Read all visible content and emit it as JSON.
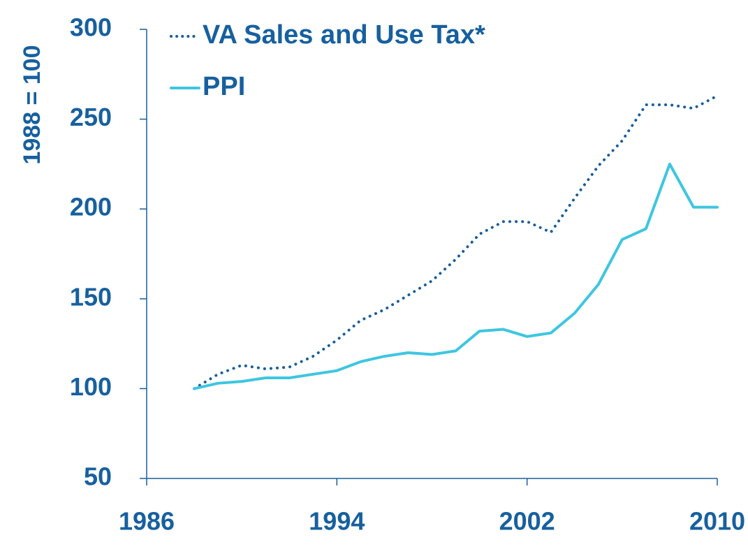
{
  "chart_data": {
    "type": "line",
    "y_label": "1988 = 100",
    "x": [
      1988,
      1989,
      1990,
      1991,
      1992,
      1993,
      1994,
      1995,
      1996,
      1997,
      1998,
      1999,
      2000,
      2001,
      2002,
      2003,
      2004,
      2005,
      2006,
      2007,
      2008,
      2009,
      2010
    ],
    "series": [
      {
        "name": "VA Sales and Use Tax*",
        "color": "#1a5e9a",
        "dashed": true,
        "values": [
          100,
          108,
          113,
          111,
          112,
          118,
          127,
          138,
          144,
          152,
          160,
          172,
          186,
          193,
          193,
          187,
          206,
          224,
          238,
          258,
          258,
          256,
          263
        ]
      },
      {
        "name": "PPI",
        "color": "#3ec6e0",
        "dashed": false,
        "values": [
          100,
          103,
          104,
          106,
          106,
          108,
          110,
          115,
          118,
          120,
          119,
          121,
          132,
          133,
          129,
          131,
          142,
          158,
          183,
          189,
          225,
          201,
          201
        ]
      }
    ],
    "xlim": [
      1986,
      2010
    ],
    "xticks": [
      1986,
      1994,
      2002,
      2010
    ],
    "ylim": [
      50,
      300
    ],
    "yticks": [
      50,
      100,
      150,
      200,
      250,
      300
    ],
    "axis_color": "#1a5e9a"
  }
}
